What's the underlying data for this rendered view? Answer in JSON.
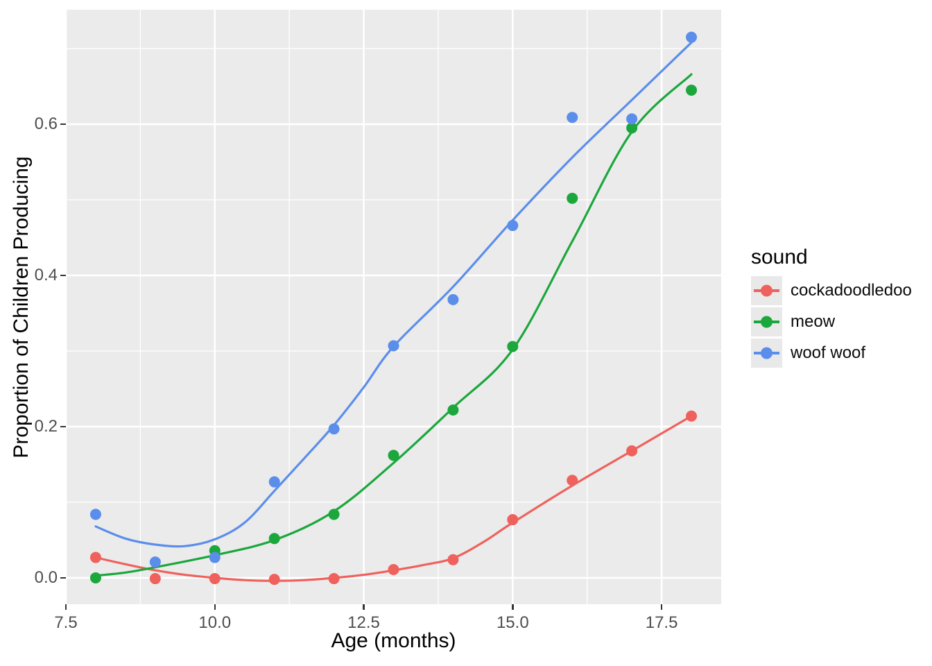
{
  "figure": {
    "background": "#ffffff",
    "panel_background": "#ebebeb",
    "gridline_color": "#ffffff",
    "tick_text_color": "#4d4d4d",
    "tick_mark_color": "#333333"
  },
  "chart_data": {
    "type": "scatter",
    "title": "",
    "xlabel": "Age (months)",
    "ylabel": "Proportion of Children Producing",
    "x_range": [
      7.5,
      18.5
    ],
    "y_range": [
      -0.0349,
      0.7514
    ],
    "x_major_ticks": [
      7.5,
      10.0,
      12.5,
      15.0,
      17.5
    ],
    "x_tick_labels": [
      "7.5",
      "10.0",
      "12.5",
      "15.0",
      "17.5"
    ],
    "x_minor_ticks": [
      8.75,
      11.25,
      13.75,
      16.25
    ],
    "y_major_ticks": [
      0.0,
      0.2,
      0.4,
      0.6
    ],
    "y_tick_labels": [
      "0.0",
      "0.2",
      "0.4",
      "0.6"
    ],
    "y_minor_ticks": [
      0.1,
      0.3,
      0.5,
      0.7
    ],
    "grid": "white major and minor gridlines on gray panel",
    "legend_title": "sound",
    "legend_position": "right",
    "series": [
      {
        "name": "cockadoodledoo",
        "color": "#ef615c",
        "points": {
          "x": [
            8,
            9,
            10,
            11,
            12,
            13,
            14,
            15,
            16,
            17,
            18
          ],
          "y": [
            0.027,
            -0.001,
            -0.001,
            -0.002,
            -0.001,
            0.011,
            0.024,
            0.077,
            0.129,
            0.168,
            0.214
          ]
        },
        "smooth": [
          [
            8,
            0.027
          ],
          [
            8.5,
            0.018
          ],
          [
            9,
            0.01
          ],
          [
            9.5,
            0.004
          ],
          [
            10,
            0.0
          ],
          [
            10.5,
            -0.003
          ],
          [
            11,
            -0.004
          ],
          [
            11.5,
            -0.003
          ],
          [
            12,
            0.0
          ],
          [
            12.5,
            0.004
          ],
          [
            13,
            0.01
          ],
          [
            13.5,
            0.017
          ],
          [
            14,
            0.026
          ],
          [
            14.5,
            0.047
          ],
          [
            15,
            0.073
          ],
          [
            16,
            0.122
          ],
          [
            17,
            0.168
          ],
          [
            18,
            0.214
          ]
        ]
      },
      {
        "name": "meow",
        "color": "#1ba73c",
        "points": {
          "x": [
            8,
            10,
            11,
            12,
            13,
            14,
            15,
            16,
            17,
            18
          ],
          "y": [
            0.0,
            0.036,
            0.052,
            0.084,
            0.162,
            0.222,
            0.306,
            0.502,
            0.595,
            0.645
          ]
        },
        "smooth": [
          [
            8,
            0.003
          ],
          [
            8.5,
            0.007
          ],
          [
            9,
            0.014
          ],
          [
            10,
            0.03
          ],
          [
            11,
            0.05
          ],
          [
            12,
            0.088
          ],
          [
            13,
            0.152
          ],
          [
            14,
            0.225
          ],
          [
            15,
            0.302
          ],
          [
            16,
            0.445
          ],
          [
            17,
            0.59
          ],
          [
            18,
            0.666
          ]
        ]
      },
      {
        "name": "woof woof",
        "color": "#5b8deb",
        "points": {
          "x": [
            8,
            9,
            10,
            11,
            12,
            13,
            14,
            15,
            16,
            17,
            18
          ],
          "y": [
            0.084,
            0.021,
            0.027,
            0.127,
            0.197,
            0.307,
            0.368,
            0.466,
            0.609,
            0.607,
            0.715
          ]
        },
        "smooth": [
          [
            8,
            0.068
          ],
          [
            8.5,
            0.052
          ],
          [
            9,
            0.044
          ],
          [
            9.5,
            0.042
          ],
          [
            10,
            0.051
          ],
          [
            10.5,
            0.073
          ],
          [
            11,
            0.115
          ],
          [
            11.5,
            0.158
          ],
          [
            12,
            0.202
          ],
          [
            12.5,
            0.252
          ],
          [
            13,
            0.306
          ],
          [
            14,
            0.385
          ],
          [
            15,
            0.473
          ],
          [
            16,
            0.556
          ],
          [
            17,
            0.632
          ],
          [
            18,
            0.708
          ]
        ]
      }
    ]
  }
}
